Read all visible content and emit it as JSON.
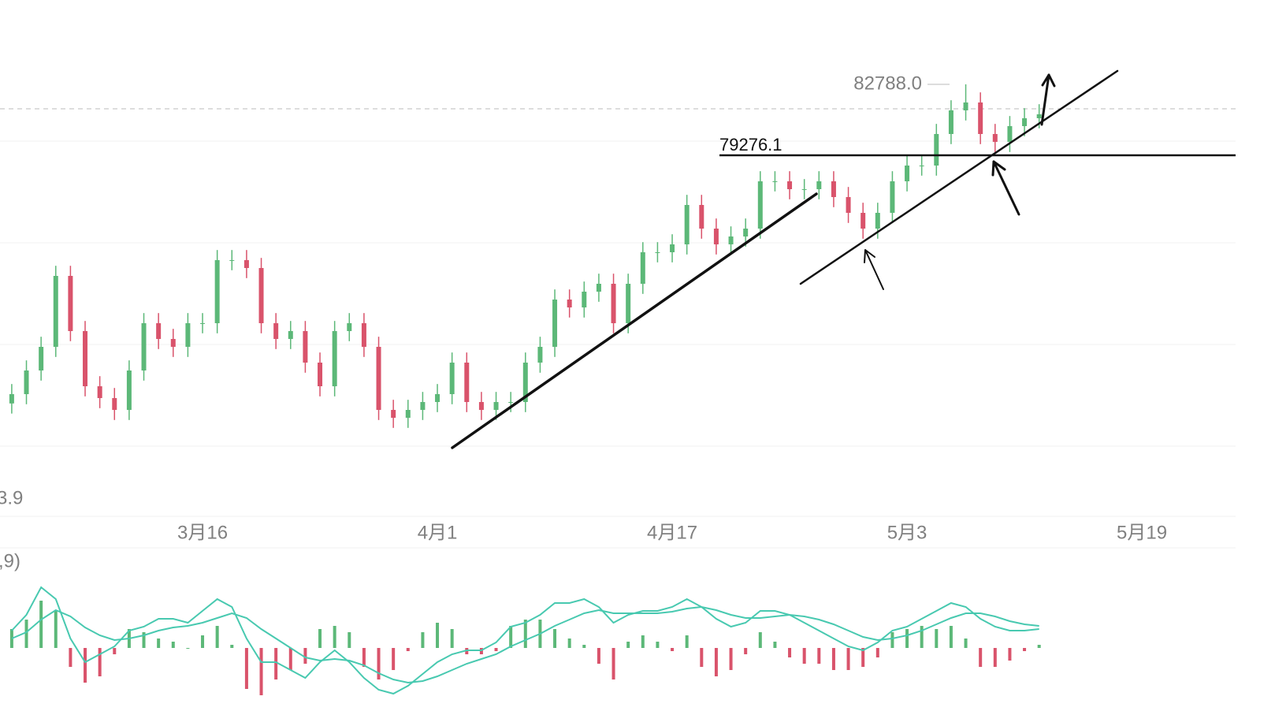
{
  "chart_data": [
    {
      "type": "candlestick",
      "x": [
        0,
        1,
        2,
        3,
        4,
        5,
        6,
        7,
        8,
        9,
        10,
        11,
        12,
        13,
        14,
        15,
        16,
        17,
        18,
        19,
        20,
        21,
        22,
        23,
        24,
        25,
        26,
        27,
        28,
        29,
        30,
        31,
        32,
        33,
        34,
        35,
        36,
        37,
        38,
        39,
        40,
        41,
        42,
        43,
        44,
        45,
        46,
        47,
        48,
        49,
        50,
        51,
        52,
        53,
        54,
        55,
        56,
        57,
        58,
        59,
        60,
        61,
        62,
        63,
        64,
        65,
        66,
        67,
        68,
        69,
        70
      ],
      "open": [
        67000,
        67461,
        68631,
        69801,
        73311,
        70581,
        67851,
        67266,
        66681,
        68631,
        70971,
        70191,
        69801,
        70971,
        70971,
        74091,
        74091,
        73701,
        70971,
        70191,
        70581,
        69021,
        67851,
        70581,
        70971,
        69801,
        66681,
        66291,
        66681,
        67071,
        67461,
        69021,
        67071,
        66681,
        67071,
        67071,
        69021,
        69801,
        72141,
        71751,
        72531,
        72921,
        70971,
        72921,
        74481,
        74481,
        74871,
        76821,
        75651,
        74871,
        75261,
        75651,
        77991,
        77991,
        77601,
        77601,
        77991,
        77211,
        76431,
        75651,
        76431,
        77991,
        78771,
        78771,
        80331,
        81501,
        81891,
        80331,
        79941,
        80721,
        81111
      ],
      "high": [
        67961,
        69131,
        70301,
        73811,
        73811,
        71081,
        68351,
        67766,
        69131,
        71471,
        71471,
        70691,
        71471,
        71471,
        74591,
        74591,
        74591,
        74201,
        71471,
        71081,
        71081,
        69521,
        71081,
        71471,
        71471,
        70301,
        67181,
        67181,
        67571,
        67961,
        69521,
        69521,
        67571,
        67571,
        67571,
        69521,
        70301,
        72641,
        72641,
        73031,
        73421,
        73421,
        73421,
        74981,
        74981,
        75371,
        77321,
        77321,
        76151,
        75761,
        76151,
        78491,
        78491,
        78491,
        78101,
        78491,
        78491,
        77711,
        76931,
        76931,
        78491,
        79271,
        79271,
        80831,
        82001,
        82788,
        82391,
        80831,
        81221,
        81611,
        81806
      ],
      "low": [
        66500,
        66961,
        68131,
        69301,
        70081,
        67351,
        66766,
        66181,
        66181,
        68131,
        69691,
        69301,
        69301,
        70471,
        70471,
        73591,
        73201,
        70471,
        69691,
        69691,
        68521,
        67351,
        67351,
        70081,
        69301,
        66181,
        65791,
        65791,
        66181,
        66571,
        66961,
        66571,
        66181,
        66181,
        66571,
        66571,
        68521,
        69301,
        71251,
        71251,
        72031,
        70471,
        70471,
        72421,
        73981,
        73981,
        74371,
        75151,
        74371,
        74371,
        74761,
        75151,
        77491,
        77101,
        77101,
        77101,
        76711,
        75931,
        75151,
        75151,
        75931,
        77491,
        78271,
        78271,
        79831,
        81001,
        79831,
        79441,
        79441,
        80221,
        80611
      ],
      "close": [
        67461,
        68631,
        69801,
        73311,
        70581,
        67851,
        67266,
        66681,
        68631,
        70971,
        70191,
        69801,
        70971,
        70971,
        74091,
        74091,
        73701,
        70971,
        70191,
        70581,
        69021,
        67851,
        70581,
        70971,
        69801,
        66681,
        66291,
        66681,
        67071,
        67461,
        69021,
        67071,
        66681,
        67071,
        67071,
        69021,
        69801,
        72141,
        71751,
        72531,
        72921,
        70971,
        72921,
        74481,
        74481,
        74871,
        76821,
        75651,
        74871,
        75261,
        75651,
        77991,
        77991,
        77601,
        77601,
        77991,
        77211,
        76431,
        75651,
        76431,
        77991,
        78771,
        78771,
        80331,
        81501,
        81891,
        80331,
        79941,
        80721,
        81111,
        81306
      ],
      "up_color": "#5cb878",
      "down_color": "#d9536b",
      "xlim": [
        -0.8,
        86.07
      ],
      "ylim": [
        61416,
        86961
      ],
      "xticks": [
        {
          "value": 13,
          "label": "3月16"
        },
        {
          "value": 29,
          "label": "4月1"
        },
        {
          "value": 45,
          "label": "4月17"
        },
        {
          "value": 61,
          "label": "5月3"
        },
        {
          "value": 77,
          "label": "5月19"
        }
      ],
      "high_marker": {
        "value": 82788,
        "label": "82788.0"
      },
      "level_line": 79276.1,
      "last_price": 81579,
      "low_label": "3.9"
    },
    {
      "type": "macd",
      "label": ",9)",
      "x": [
        0,
        1,
        2,
        3,
        4,
        5,
        6,
        7,
        8,
        9,
        10,
        11,
        12,
        13,
        14,
        15,
        16,
        17,
        18,
        19,
        20,
        21,
        22,
        23,
        24,
        25,
        26,
        27,
        28,
        29,
        30,
        31,
        32,
        33,
        34,
        35,
        36,
        37,
        38,
        39,
        40,
        41,
        42,
        43,
        44,
        45,
        46,
        47,
        48,
        49,
        50,
        51,
        52,
        53,
        54,
        55,
        56,
        57,
        58,
        59,
        60,
        61,
        62,
        63,
        64,
        65,
        66,
        67,
        68,
        69,
        70
      ],
      "ylim": [
        -2000,
        2000
      ],
      "histogram": {
        "up_color": "#5cb878",
        "down_color": "#d9536b",
        "values": [
          600,
          900,
          1500,
          1200,
          -600,
          -1100,
          -900,
          -200,
          600,
          500,
          300,
          200,
          0,
          400,
          700,
          100,
          -1300,
          -1500,
          -1000,
          -700,
          -500,
          600,
          700,
          500,
          -600,
          -1000,
          -700,
          -100,
          500,
          800,
          600,
          -200,
          -200,
          -100,
          700,
          900,
          900,
          600,
          300,
          100,
          -500,
          -1000,
          200,
          400,
          200,
          -100,
          400,
          -600,
          -900,
          -700,
          -200,
          500,
          200,
          -300,
          -500,
          -500,
          -700,
          -700,
          -600,
          -300,
          500,
          600,
          700,
          600,
          700,
          300,
          -600,
          -600,
          -400,
          -100,
          100
        ]
      },
      "series": [
        {
          "color": "#48c9b0",
          "values": [
            550,
            1050,
            1925,
            1550,
            300,
            -450,
            -200,
            50,
            550,
            675,
            925,
            925,
            800,
            1175,
            1550,
            1300,
            300,
            -450,
            -450,
            -700,
            -950,
            -450,
            -75,
            -450,
            -950,
            -1325,
            -1450,
            -1200,
            -825,
            -450,
            -200,
            -75,
            -75,
            175,
            675,
            800,
            1050,
            1425,
            1425,
            1550,
            1300,
            800,
            1050,
            1175,
            1175,
            1300,
            1550,
            1300,
            925,
            675,
            800,
            1175,
            1175,
            1050,
            800,
            550,
            300,
            50,
            -75,
            175,
            550,
            675,
            925,
            1175,
            1425,
            1300,
            925,
            675,
            550,
            550,
            600
          ]
        },
        {
          "color": "#48c9b0",
          "values": [
            300,
            500,
            900,
            1200,
            1000,
            650,
            400,
            250,
            300,
            400,
            550,
            650,
            700,
            800,
            950,
            1100,
            950,
            600,
            300,
            0,
            -300,
            -400,
            -350,
            -400,
            -550,
            -800,
            -1000,
            -1100,
            -1050,
            -900,
            -700,
            -500,
            -350,
            -200,
            50,
            250,
            450,
            700,
            900,
            1100,
            1200,
            1100,
            1100,
            1100,
            1100,
            1150,
            1250,
            1300,
            1200,
            1050,
            950,
            950,
            1000,
            1050,
            1000,
            900,
            750,
            550,
            350,
            250,
            300,
            400,
            550,
            750,
            950,
            1100,
            1100,
            1000,
            850,
            750,
            700
          ]
        }
      ]
    }
  ]
}
